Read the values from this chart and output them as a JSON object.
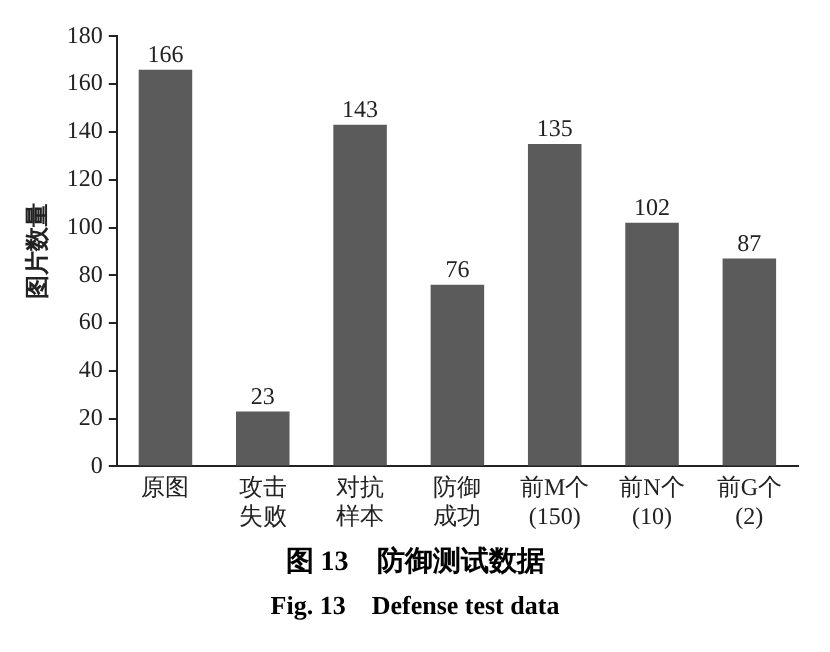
{
  "chart_data": {
    "type": "bar",
    "title": "图 13　防御测试数据",
    "subtitle": "Fig. 13　Defense test data",
    "ylabel": "图片数量",
    "categories": [
      "原图",
      "攻击失败",
      "对抗样本",
      "防御成功",
      "前M个\n(150)",
      "前N个\n(10)",
      "前G个\n(2)"
    ],
    "values": [
      166,
      23,
      143,
      76,
      135,
      102,
      87
    ],
    "color": "#5b5b5b",
    "ylim": [
      0,
      180
    ],
    "yticks": [
      0,
      20,
      40,
      60,
      80,
      100,
      120,
      140,
      160,
      180
    ],
    "grid": false,
    "legend": false,
    "data_labels": true
  }
}
